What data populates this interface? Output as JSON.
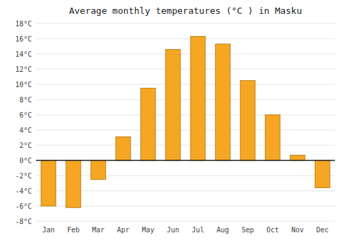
{
  "chart_data": {
    "type": "bar",
    "title": "Average monthly temperatures (°C ) in Masku",
    "categories": [
      "Jan",
      "Feb",
      "Mar",
      "Apr",
      "May",
      "Jun",
      "Jul",
      "Aug",
      "Sep",
      "Oct",
      "Nov",
      "Dec"
    ],
    "values": [
      -6.0,
      -6.2,
      -2.5,
      3.1,
      9.5,
      14.6,
      16.3,
      15.3,
      10.5,
      6.0,
      0.7,
      -3.6
    ],
    "ylim": [
      -8,
      18
    ],
    "yticks": [
      {
        "value": -8,
        "label": "-8°C"
      },
      {
        "value": -6,
        "label": "-6°C"
      },
      {
        "value": -4,
        "label": "-4°C"
      },
      {
        "value": -2,
        "label": "-2°C"
      },
      {
        "value": 0,
        "label": "0°C"
      },
      {
        "value": 2,
        "label": "2°C"
      },
      {
        "value": 4,
        "label": "4°C"
      },
      {
        "value": 6,
        "label": "6°C"
      },
      {
        "value": 8,
        "label": "8°C"
      },
      {
        "value": 10,
        "label": "10°C"
      },
      {
        "value": 12,
        "label": "12°C"
      },
      {
        "value": 14,
        "label": "14°C"
      },
      {
        "value": 16,
        "label": "16°C"
      },
      {
        "value": 18,
        "label": "18°C"
      }
    ],
    "grid": true
  }
}
